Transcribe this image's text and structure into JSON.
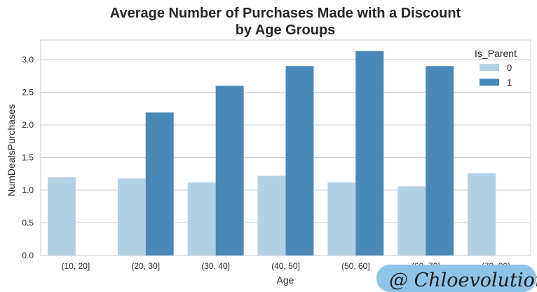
{
  "chart_data": {
    "type": "bar",
    "title_line1": "Average Number of Purchases Made with a Discount",
    "title_line2": "by Age Groups",
    "xlabel": "Age",
    "ylabel": "NumDealsPurchases",
    "categories": [
      "(10, 20]",
      "(20, 30]",
      "(30, 40]",
      "(40, 50]",
      "(50, 60]",
      "(60, 70]",
      "(70, 80]"
    ],
    "series": [
      {
        "name": "0",
        "color": "#b3d1e5",
        "values": [
          1.2,
          1.18,
          1.12,
          1.22,
          1.12,
          1.06,
          1.26
        ]
      },
      {
        "name": "1",
        "color": "#4a88b8",
        "values": [
          null,
          2.19,
          2.6,
          2.9,
          3.13,
          2.9,
          null
        ]
      }
    ],
    "ylim": [
      0,
      3.3
    ],
    "yticks": [
      "0.0",
      "0.5",
      "1.0",
      "1.5",
      "2.0",
      "2.5",
      "3.0"
    ],
    "grid": true,
    "legend": {
      "title": "Is_Parent",
      "position": "top-right"
    }
  },
  "watermark": {
    "text": "@ Chloevolution",
    "color": "#8fc3e8"
  }
}
